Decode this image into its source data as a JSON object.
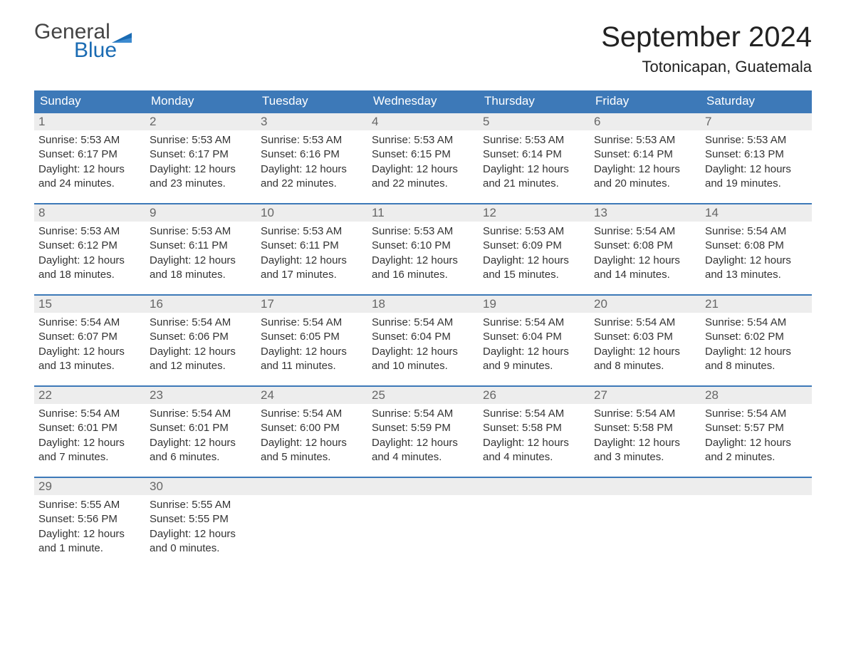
{
  "brand": {
    "general": "General",
    "blue": "Blue"
  },
  "title": "September 2024",
  "location": "Totonicapan, Guatemala",
  "weekdays": [
    "Sunday",
    "Monday",
    "Tuesday",
    "Wednesday",
    "Thursday",
    "Friday",
    "Saturday"
  ],
  "styling": {
    "header_bg": "#3d79b8",
    "header_text": "#ffffff",
    "daynum_bg": "#ededed",
    "daynum_border": "#3d79b8",
    "body_bg": "#ffffff",
    "text_color": "#333333",
    "daynum_color": "#666666",
    "brand_general_color": "#444444",
    "brand_blue_color": "#1a6bb3",
    "title_fontsize": 40,
    "location_fontsize": 22,
    "header_fontsize": 17,
    "body_fontsize": 15
  },
  "weeks": [
    [
      {
        "n": "1",
        "sunrise": "Sunrise: 5:53 AM",
        "sunset": "Sunset: 6:17 PM",
        "day1": "Daylight: 12 hours",
        "day2": "and 24 minutes."
      },
      {
        "n": "2",
        "sunrise": "Sunrise: 5:53 AM",
        "sunset": "Sunset: 6:17 PM",
        "day1": "Daylight: 12 hours",
        "day2": "and 23 minutes."
      },
      {
        "n": "3",
        "sunrise": "Sunrise: 5:53 AM",
        "sunset": "Sunset: 6:16 PM",
        "day1": "Daylight: 12 hours",
        "day2": "and 22 minutes."
      },
      {
        "n": "4",
        "sunrise": "Sunrise: 5:53 AM",
        "sunset": "Sunset: 6:15 PM",
        "day1": "Daylight: 12 hours",
        "day2": "and 22 minutes."
      },
      {
        "n": "5",
        "sunrise": "Sunrise: 5:53 AM",
        "sunset": "Sunset: 6:14 PM",
        "day1": "Daylight: 12 hours",
        "day2": "and 21 minutes."
      },
      {
        "n": "6",
        "sunrise": "Sunrise: 5:53 AM",
        "sunset": "Sunset: 6:14 PM",
        "day1": "Daylight: 12 hours",
        "day2": "and 20 minutes."
      },
      {
        "n": "7",
        "sunrise": "Sunrise: 5:53 AM",
        "sunset": "Sunset: 6:13 PM",
        "day1": "Daylight: 12 hours",
        "day2": "and 19 minutes."
      }
    ],
    [
      {
        "n": "8",
        "sunrise": "Sunrise: 5:53 AM",
        "sunset": "Sunset: 6:12 PM",
        "day1": "Daylight: 12 hours",
        "day2": "and 18 minutes."
      },
      {
        "n": "9",
        "sunrise": "Sunrise: 5:53 AM",
        "sunset": "Sunset: 6:11 PM",
        "day1": "Daylight: 12 hours",
        "day2": "and 18 minutes."
      },
      {
        "n": "10",
        "sunrise": "Sunrise: 5:53 AM",
        "sunset": "Sunset: 6:11 PM",
        "day1": "Daylight: 12 hours",
        "day2": "and 17 minutes."
      },
      {
        "n": "11",
        "sunrise": "Sunrise: 5:53 AM",
        "sunset": "Sunset: 6:10 PM",
        "day1": "Daylight: 12 hours",
        "day2": "and 16 minutes."
      },
      {
        "n": "12",
        "sunrise": "Sunrise: 5:53 AM",
        "sunset": "Sunset: 6:09 PM",
        "day1": "Daylight: 12 hours",
        "day2": "and 15 minutes."
      },
      {
        "n": "13",
        "sunrise": "Sunrise: 5:54 AM",
        "sunset": "Sunset: 6:08 PM",
        "day1": "Daylight: 12 hours",
        "day2": "and 14 minutes."
      },
      {
        "n": "14",
        "sunrise": "Sunrise: 5:54 AM",
        "sunset": "Sunset: 6:08 PM",
        "day1": "Daylight: 12 hours",
        "day2": "and 13 minutes."
      }
    ],
    [
      {
        "n": "15",
        "sunrise": "Sunrise: 5:54 AM",
        "sunset": "Sunset: 6:07 PM",
        "day1": "Daylight: 12 hours",
        "day2": "and 13 minutes."
      },
      {
        "n": "16",
        "sunrise": "Sunrise: 5:54 AM",
        "sunset": "Sunset: 6:06 PM",
        "day1": "Daylight: 12 hours",
        "day2": "and 12 minutes."
      },
      {
        "n": "17",
        "sunrise": "Sunrise: 5:54 AM",
        "sunset": "Sunset: 6:05 PM",
        "day1": "Daylight: 12 hours",
        "day2": "and 11 minutes."
      },
      {
        "n": "18",
        "sunrise": "Sunrise: 5:54 AM",
        "sunset": "Sunset: 6:04 PM",
        "day1": "Daylight: 12 hours",
        "day2": "and 10 minutes."
      },
      {
        "n": "19",
        "sunrise": "Sunrise: 5:54 AM",
        "sunset": "Sunset: 6:04 PM",
        "day1": "Daylight: 12 hours",
        "day2": "and 9 minutes."
      },
      {
        "n": "20",
        "sunrise": "Sunrise: 5:54 AM",
        "sunset": "Sunset: 6:03 PM",
        "day1": "Daylight: 12 hours",
        "day2": "and 8 minutes."
      },
      {
        "n": "21",
        "sunrise": "Sunrise: 5:54 AM",
        "sunset": "Sunset: 6:02 PM",
        "day1": "Daylight: 12 hours",
        "day2": "and 8 minutes."
      }
    ],
    [
      {
        "n": "22",
        "sunrise": "Sunrise: 5:54 AM",
        "sunset": "Sunset: 6:01 PM",
        "day1": "Daylight: 12 hours",
        "day2": "and 7 minutes."
      },
      {
        "n": "23",
        "sunrise": "Sunrise: 5:54 AM",
        "sunset": "Sunset: 6:01 PM",
        "day1": "Daylight: 12 hours",
        "day2": "and 6 minutes."
      },
      {
        "n": "24",
        "sunrise": "Sunrise: 5:54 AM",
        "sunset": "Sunset: 6:00 PM",
        "day1": "Daylight: 12 hours",
        "day2": "and 5 minutes."
      },
      {
        "n": "25",
        "sunrise": "Sunrise: 5:54 AM",
        "sunset": "Sunset: 5:59 PM",
        "day1": "Daylight: 12 hours",
        "day2": "and 4 minutes."
      },
      {
        "n": "26",
        "sunrise": "Sunrise: 5:54 AM",
        "sunset": "Sunset: 5:58 PM",
        "day1": "Daylight: 12 hours",
        "day2": "and 4 minutes."
      },
      {
        "n": "27",
        "sunrise": "Sunrise: 5:54 AM",
        "sunset": "Sunset: 5:58 PM",
        "day1": "Daylight: 12 hours",
        "day2": "and 3 minutes."
      },
      {
        "n": "28",
        "sunrise": "Sunrise: 5:54 AM",
        "sunset": "Sunset: 5:57 PM",
        "day1": "Daylight: 12 hours",
        "day2": "and 2 minutes."
      }
    ],
    [
      {
        "n": "29",
        "sunrise": "Sunrise: 5:55 AM",
        "sunset": "Sunset: 5:56 PM",
        "day1": "Daylight: 12 hours",
        "day2": "and 1 minute."
      },
      {
        "n": "30",
        "sunrise": "Sunrise: 5:55 AM",
        "sunset": "Sunset: 5:55 PM",
        "day1": "Daylight: 12 hours",
        "day2": "and 0 minutes."
      },
      null,
      null,
      null,
      null,
      null
    ]
  ]
}
